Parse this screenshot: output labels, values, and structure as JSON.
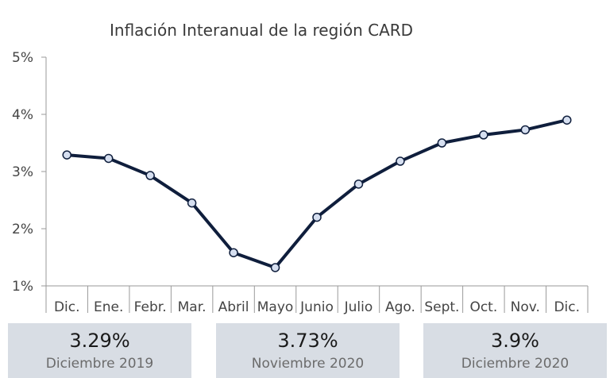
{
  "chart_data": {
    "type": "line",
    "title": "Inflación Interanual de la región CARD",
    "categories": [
      "Dic.",
      "Ene.",
      "Febr.",
      "Mar.",
      "Abril",
      "Mayo",
      "Junio",
      "Julio",
      "Ago.",
      "Sept.",
      "Oct.",
      "Nov.",
      "Dic."
    ],
    "values": [
      3.29,
      3.23,
      2.93,
      2.45,
      1.58,
      1.32,
      2.2,
      2.78,
      3.18,
      3.5,
      3.64,
      3.73,
      3.9
    ],
    "ylim": [
      1,
      5
    ],
    "yticks": [
      "1%",
      "2%",
      "3%",
      "4%",
      "5%"
    ],
    "grid": false,
    "line_color": "#0f1e3c",
    "marker_fill": "#d6dff0"
  },
  "kpis": [
    {
      "value": "3.29%",
      "label": "Diciembre 2019"
    },
    {
      "value": "3.73%",
      "label": "Noviembre 2020"
    },
    {
      "value": "3.9%",
      "label": "Diciembre 2020"
    }
  ]
}
